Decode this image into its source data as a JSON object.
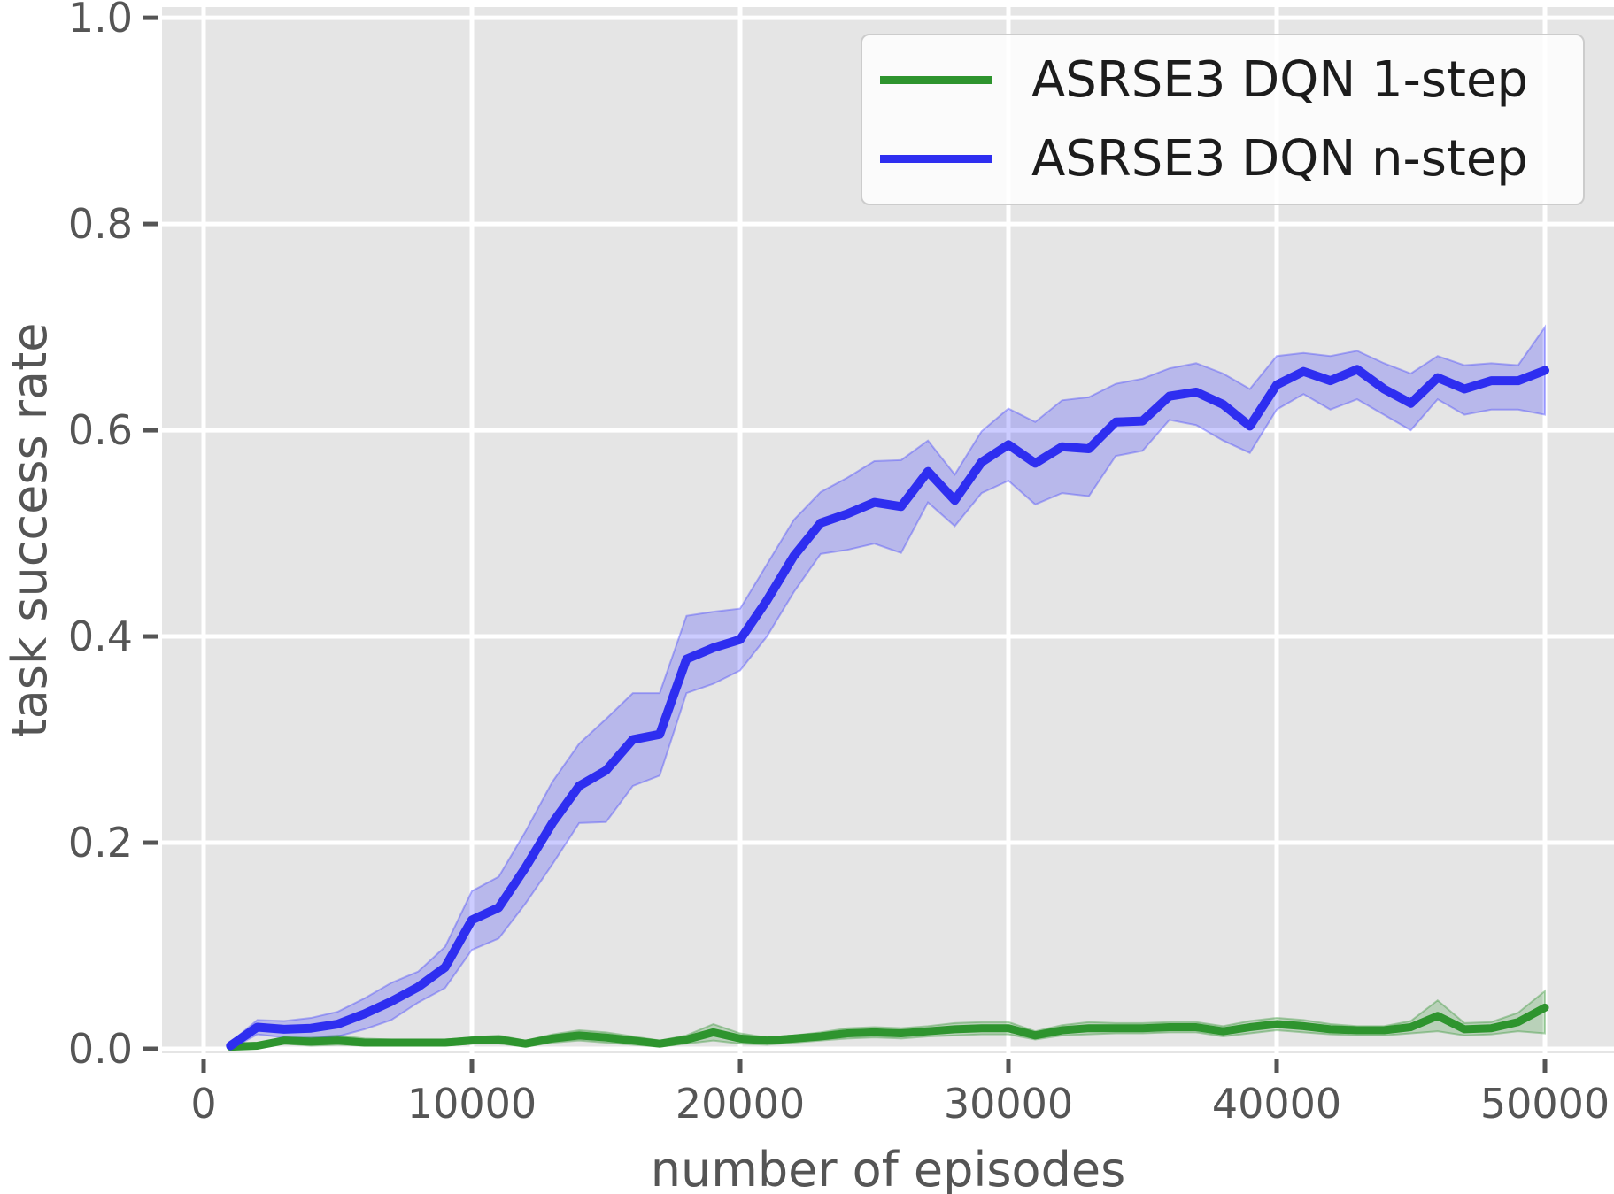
{
  "chart_data": {
    "type": "line",
    "title": "",
    "xlabel": "number of episodes",
    "ylabel": "task success rate",
    "grid": true,
    "legend_position": "upper right",
    "xlim": [
      -1551,
      52574
    ],
    "ylim": [
      -0.0043,
      1.0104
    ],
    "x_ticks": {
      "values": [
        0,
        10000,
        20000,
        30000,
        40000,
        50000
      ],
      "labels": [
        "0",
        "10000",
        "20000",
        "30000",
        "40000",
        "50000"
      ]
    },
    "y_ticks": {
      "values": [
        0.0,
        0.2,
        0.4,
        0.6,
        0.8,
        1.0
      ],
      "labels": [
        "0.0",
        "0.2",
        "0.4",
        "0.6",
        "0.8",
        "1.0"
      ]
    },
    "x": [
      1000,
      2000,
      3000,
      4000,
      5000,
      6000,
      7000,
      8000,
      9000,
      10000,
      11000,
      12000,
      13000,
      14000,
      15000,
      16000,
      17000,
      18000,
      19000,
      20000,
      21000,
      22000,
      23000,
      24000,
      25000,
      26000,
      27000,
      28000,
      29000,
      30000,
      31000,
      32000,
      33000,
      34000,
      35000,
      36000,
      37000,
      38000,
      39000,
      40000,
      41000,
      42000,
      43000,
      44000,
      45000,
      46000,
      47000,
      48000,
      49000,
      50000
    ],
    "series": [
      {
        "name": "ASRSE3 DQN 1-step",
        "color": "#2E942E",
        "band_color": "#228B22",
        "band_opacity": 0.22,
        "values": [
          0.002,
          0.003,
          0.008,
          0.007,
          0.008,
          0.006,
          0.006,
          0.006,
          0.006,
          0.008,
          0.009,
          0.005,
          0.01,
          0.013,
          0.011,
          0.008,
          0.005,
          0.009,
          0.016,
          0.01,
          0.008,
          0.01,
          0.012,
          0.015,
          0.016,
          0.015,
          0.017,
          0.019,
          0.02,
          0.02,
          0.013,
          0.018,
          0.02,
          0.02,
          0.02,
          0.021,
          0.021,
          0.017,
          0.021,
          0.024,
          0.022,
          0.019,
          0.018,
          0.018,
          0.021,
          0.032,
          0.019,
          0.02,
          0.026,
          0.04
        ],
        "band_upper": [
          0.003,
          0.005,
          0.011,
          0.011,
          0.013,
          0.01,
          0.009,
          0.009,
          0.009,
          0.011,
          0.013,
          0.008,
          0.014,
          0.018,
          0.016,
          0.012,
          0.008,
          0.013,
          0.024,
          0.015,
          0.011,
          0.013,
          0.016,
          0.02,
          0.021,
          0.02,
          0.022,
          0.025,
          0.026,
          0.026,
          0.017,
          0.023,
          0.026,
          0.025,
          0.025,
          0.026,
          0.026,
          0.022,
          0.027,
          0.03,
          0.028,
          0.024,
          0.022,
          0.022,
          0.027,
          0.047,
          0.025,
          0.026,
          0.035,
          0.056
        ],
        "band_lower": [
          0.001,
          0.001,
          0.005,
          0.003,
          0.004,
          0.003,
          0.003,
          0.003,
          0.003,
          0.005,
          0.005,
          0.002,
          0.006,
          0.008,
          0.006,
          0.004,
          0.002,
          0.005,
          0.008,
          0.005,
          0.004,
          0.006,
          0.008,
          0.01,
          0.011,
          0.01,
          0.012,
          0.013,
          0.014,
          0.014,
          0.009,
          0.013,
          0.014,
          0.015,
          0.015,
          0.016,
          0.016,
          0.012,
          0.015,
          0.018,
          0.016,
          0.014,
          0.013,
          0.013,
          0.015,
          0.017,
          0.013,
          0.014,
          0.017,
          0.015
        ]
      },
      {
        "name": "ASRSE3 DQN n-step",
        "color": "#2E2EF0",
        "band_color": "#3333FF",
        "band_opacity": 0.25,
        "values": [
          0.003,
          0.021,
          0.019,
          0.02,
          0.024,
          0.034,
          0.046,
          0.06,
          0.079,
          0.125,
          0.137,
          0.176,
          0.219,
          0.255,
          0.27,
          0.3,
          0.305,
          0.378,
          0.389,
          0.397,
          0.435,
          0.478,
          0.51,
          0.519,
          0.53,
          0.526,
          0.56,
          0.532,
          0.569,
          0.586,
          0.568,
          0.584,
          0.582,
          0.608,
          0.609,
          0.633,
          0.637,
          0.625,
          0.604,
          0.644,
          0.657,
          0.648,
          0.659,
          0.64,
          0.626,
          0.651,
          0.64,
          0.648,
          0.648,
          0.658
        ],
        "band_upper": [
          0.006,
          0.028,
          0.027,
          0.03,
          0.036,
          0.049,
          0.064,
          0.075,
          0.099,
          0.153,
          0.167,
          0.211,
          0.259,
          0.296,
          0.32,
          0.345,
          0.345,
          0.42,
          0.424,
          0.427,
          0.47,
          0.513,
          0.54,
          0.554,
          0.57,
          0.571,
          0.59,
          0.557,
          0.599,
          0.621,
          0.608,
          0.629,
          0.632,
          0.645,
          0.65,
          0.66,
          0.665,
          0.655,
          0.64,
          0.672,
          0.675,
          0.672,
          0.677,
          0.665,
          0.655,
          0.672,
          0.663,
          0.665,
          0.663,
          0.7
        ],
        "band_lower": [
          0.0,
          0.014,
          0.011,
          0.01,
          0.012,
          0.019,
          0.028,
          0.045,
          0.059,
          0.096,
          0.107,
          0.141,
          0.179,
          0.219,
          0.22,
          0.255,
          0.265,
          0.345,
          0.354,
          0.367,
          0.4,
          0.443,
          0.48,
          0.484,
          0.49,
          0.481,
          0.53,
          0.507,
          0.539,
          0.551,
          0.528,
          0.539,
          0.536,
          0.575,
          0.58,
          0.61,
          0.605,
          0.59,
          0.578,
          0.62,
          0.635,
          0.62,
          0.63,
          0.615,
          0.6,
          0.63,
          0.615,
          0.62,
          0.62,
          0.615
        ]
      }
    ],
    "colors": {
      "figure_bg": "#FFFFFF",
      "plot_bg": "#E5E5E5",
      "grid": "#FFFFFF",
      "tick": "#555555",
      "label": "#555555",
      "legend_text": "#1C1C1C",
      "legend_bg": "#FBFBFB",
      "legend_border": "#CCCCCC"
    }
  }
}
